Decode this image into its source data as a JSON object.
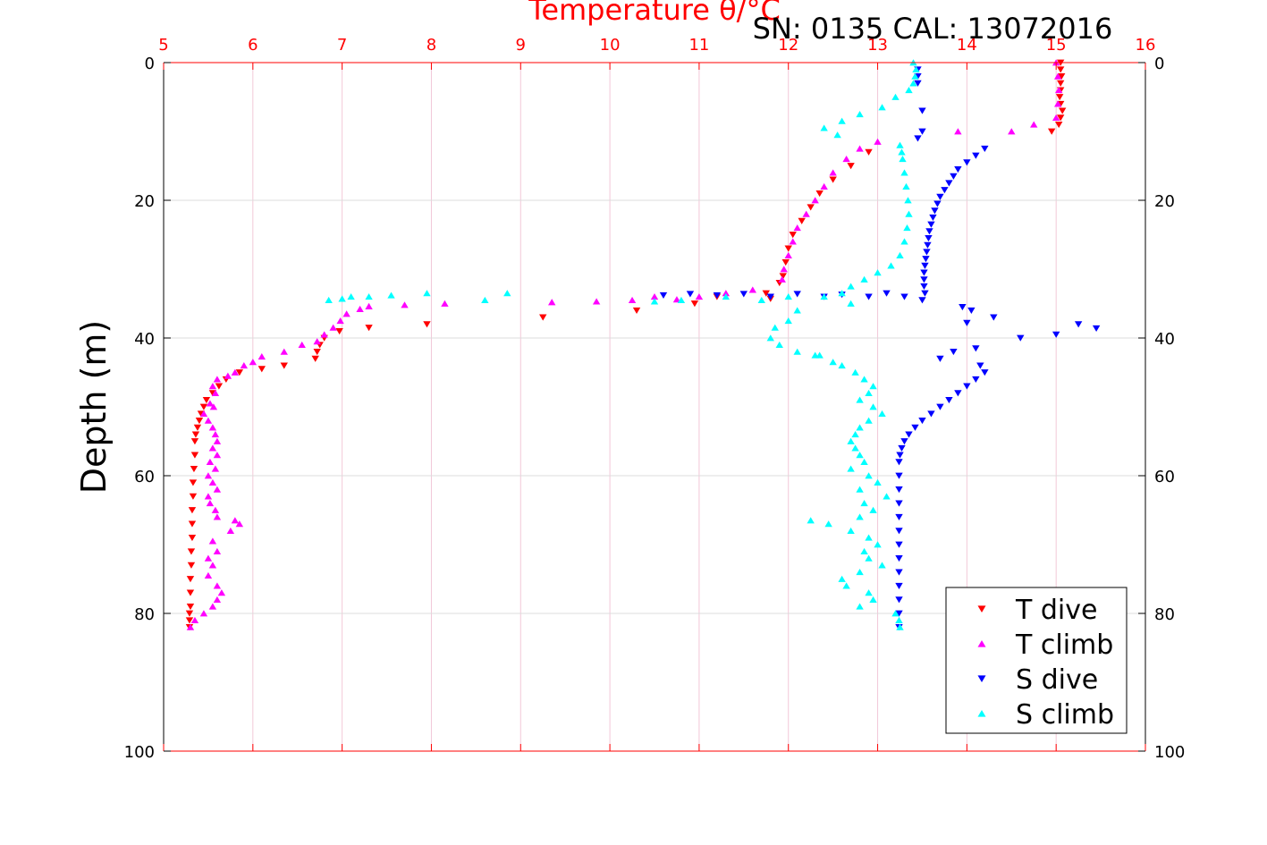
{
  "chart_data": {
    "type": "scatter",
    "title": "Temperature θ/°C",
    "subtitle": "SN: 0135  CAL: 13072016",
    "xlabel": "Temperature θ/°C",
    "ylabel": "Depth (m)",
    "xlim": [
      5,
      16
    ],
    "ylim": [
      0,
      100
    ],
    "y_reversed": true,
    "x_ticks": [
      "5",
      "6",
      "7",
      "8",
      "9",
      "10",
      "11",
      "12",
      "13",
      "14",
      "15",
      "16"
    ],
    "y_ticks": [
      "0",
      "20",
      "40",
      "60",
      "80",
      "100"
    ],
    "grid": true,
    "legend_position": "bottom-right",
    "colors": {
      "t_axis": "#ff0000",
      "t_dive": "#ff0000",
      "t_climb": "#ff00ff",
      "s_dive": "#0000ff",
      "s_climb": "#00ffff"
    },
    "series": [
      {
        "name": "T dive",
        "marker": "triangle-down",
        "color": "#ff0000",
        "points": [
          [
            15.05,
            0
          ],
          [
            15.05,
            1
          ],
          [
            15.06,
            2
          ],
          [
            15.05,
            3
          ],
          [
            15.05,
            4
          ],
          [
            15.04,
            5
          ],
          [
            15.05,
            6
          ],
          [
            15.07,
            7
          ],
          [
            15.05,
            8
          ],
          [
            15.03,
            9
          ],
          [
            14.95,
            10
          ],
          [
            12.9,
            13
          ],
          [
            12.7,
            15
          ],
          [
            12.5,
            17
          ],
          [
            12.35,
            19
          ],
          [
            12.25,
            21
          ],
          [
            12.15,
            23
          ],
          [
            12.05,
            25
          ],
          [
            12.0,
            27
          ],
          [
            11.97,
            29
          ],
          [
            11.94,
            31
          ],
          [
            11.9,
            32
          ],
          [
            11.75,
            33.5
          ],
          [
            11.2,
            34
          ],
          [
            11.8,
            34.3
          ],
          [
            10.95,
            35
          ],
          [
            10.3,
            36
          ],
          [
            9.25,
            37
          ],
          [
            7.95,
            38
          ],
          [
            7.3,
            38.5
          ],
          [
            6.97,
            39
          ],
          [
            6.8,
            40
          ],
          [
            6.75,
            41
          ],
          [
            6.72,
            42
          ],
          [
            6.7,
            43
          ],
          [
            6.35,
            44
          ],
          [
            6.1,
            44.5
          ],
          [
            5.85,
            45
          ],
          [
            5.7,
            46
          ],
          [
            5.62,
            47
          ],
          [
            5.55,
            48
          ],
          [
            5.48,
            49
          ],
          [
            5.45,
            50
          ],
          [
            5.42,
            51
          ],
          [
            5.4,
            52
          ],
          [
            5.38,
            53
          ],
          [
            5.36,
            54
          ],
          [
            5.35,
            55
          ],
          [
            5.35,
            57
          ],
          [
            5.34,
            59
          ],
          [
            5.33,
            61
          ],
          [
            5.33,
            63
          ],
          [
            5.32,
            65
          ],
          [
            5.32,
            67
          ],
          [
            5.32,
            69
          ],
          [
            5.31,
            71
          ],
          [
            5.31,
            73
          ],
          [
            5.3,
            75
          ],
          [
            5.3,
            77
          ],
          [
            5.3,
            79
          ],
          [
            5.29,
            80
          ],
          [
            5.29,
            81
          ],
          [
            5.29,
            82
          ]
        ]
      },
      {
        "name": "T climb",
        "marker": "triangle-up",
        "color": "#ff00ff",
        "points": [
          [
            15.0,
            0
          ],
          [
            15.02,
            2
          ],
          [
            15.03,
            4
          ],
          [
            15.02,
            6
          ],
          [
            15.0,
            8
          ],
          [
            14.75,
            9
          ],
          [
            14.5,
            10
          ],
          [
            13.9,
            10
          ],
          [
            13.0,
            11.5
          ],
          [
            12.8,
            12.5
          ],
          [
            12.65,
            14
          ],
          [
            12.5,
            16
          ],
          [
            12.4,
            18
          ],
          [
            12.3,
            20
          ],
          [
            12.2,
            22
          ],
          [
            12.1,
            24
          ],
          [
            12.05,
            26
          ],
          [
            12.0,
            28
          ],
          [
            11.95,
            30
          ],
          [
            11.93,
            31.5
          ],
          [
            11.6,
            33
          ],
          [
            11.3,
            33.5
          ],
          [
            11.0,
            34
          ],
          [
            10.5,
            34
          ],
          [
            10.75,
            34.4
          ],
          [
            10.25,
            34.5
          ],
          [
            9.85,
            34.7
          ],
          [
            9.35,
            34.8
          ],
          [
            8.15,
            35
          ],
          [
            7.7,
            35.2
          ],
          [
            7.3,
            35.4
          ],
          [
            7.2,
            35.8
          ],
          [
            7.05,
            36.5
          ],
          [
            6.98,
            37.5
          ],
          [
            6.9,
            38.5
          ],
          [
            6.8,
            39.5
          ],
          [
            6.72,
            40.5
          ],
          [
            6.55,
            41
          ],
          [
            6.35,
            42
          ],
          [
            6.1,
            42.7
          ],
          [
            6.0,
            43.5
          ],
          [
            5.9,
            44
          ],
          [
            5.8,
            45
          ],
          [
            5.72,
            45.5
          ],
          [
            5.6,
            46
          ],
          [
            5.55,
            47
          ],
          [
            5.58,
            48
          ],
          [
            5.52,
            49.5
          ],
          [
            5.56,
            50
          ],
          [
            5.45,
            51
          ],
          [
            5.5,
            52
          ],
          [
            5.55,
            53
          ],
          [
            5.58,
            54
          ],
          [
            5.6,
            55
          ],
          [
            5.55,
            56
          ],
          [
            5.6,
            57
          ],
          [
            5.52,
            58
          ],
          [
            5.58,
            59
          ],
          [
            5.5,
            60
          ],
          [
            5.55,
            61
          ],
          [
            5.6,
            62
          ],
          [
            5.5,
            63
          ],
          [
            5.52,
            64
          ],
          [
            5.58,
            65
          ],
          [
            5.6,
            66
          ],
          [
            5.8,
            66.5
          ],
          [
            5.85,
            67
          ],
          [
            5.75,
            68
          ],
          [
            5.55,
            69.5
          ],
          [
            5.6,
            71
          ],
          [
            5.5,
            72
          ],
          [
            5.55,
            73
          ],
          [
            5.5,
            74.5
          ],
          [
            5.6,
            76
          ],
          [
            5.65,
            77
          ],
          [
            5.6,
            78
          ],
          [
            5.55,
            79
          ],
          [
            5.45,
            80
          ],
          [
            5.35,
            81
          ],
          [
            5.3,
            82
          ]
        ]
      },
      {
        "name": "S dive",
        "marker": "triangle-down",
        "color": "#0000ff",
        "points": [
          [
            13.45,
            1
          ],
          [
            13.45,
            2
          ],
          [
            13.45,
            3
          ],
          [
            13.5,
            7
          ],
          [
            13.5,
            10
          ],
          [
            13.45,
            11
          ],
          [
            14.2,
            12.5
          ],
          [
            14.1,
            13.5
          ],
          [
            14.0,
            14.5
          ],
          [
            13.9,
            15.5
          ],
          [
            13.85,
            16.5
          ],
          [
            13.8,
            17.5
          ],
          [
            13.75,
            18.5
          ],
          [
            13.7,
            19.5
          ],
          [
            13.67,
            20.5
          ],
          [
            13.64,
            21.5
          ],
          [
            13.62,
            22.5
          ],
          [
            13.6,
            23.5
          ],
          [
            13.58,
            24.5
          ],
          [
            13.57,
            25.5
          ],
          [
            13.56,
            26.5
          ],
          [
            13.55,
            27.5
          ],
          [
            13.54,
            28.5
          ],
          [
            13.53,
            29.5
          ],
          [
            13.52,
            30.5
          ],
          [
            13.52,
            31.5
          ],
          [
            13.52,
            32.5
          ],
          [
            13.53,
            33.5
          ],
          [
            13.5,
            34.5
          ],
          [
            13.3,
            34
          ],
          [
            13.1,
            33.5
          ],
          [
            12.9,
            34
          ],
          [
            12.6,
            33.7
          ],
          [
            12.4,
            34
          ],
          [
            12.1,
            33.6
          ],
          [
            11.8,
            34
          ],
          [
            11.5,
            33.6
          ],
          [
            11.2,
            33.8
          ],
          [
            10.9,
            33.6
          ],
          [
            10.6,
            33.8
          ],
          [
            14.3,
            37
          ],
          [
            14.0,
            37.8
          ],
          [
            15.25,
            38
          ],
          [
            15.45,
            38.6
          ],
          [
            15.0,
            39.5
          ],
          [
            14.6,
            40
          ],
          [
            14.1,
            41.5
          ],
          [
            13.85,
            42
          ],
          [
            13.7,
            43
          ],
          [
            14.15,
            44
          ],
          [
            14.2,
            45
          ],
          [
            14.1,
            46
          ],
          [
            14.0,
            47
          ],
          [
            13.9,
            48
          ],
          [
            13.8,
            49
          ],
          [
            13.7,
            50
          ],
          [
            13.6,
            51
          ],
          [
            13.5,
            52
          ],
          [
            13.42,
            53
          ],
          [
            13.35,
            54
          ],
          [
            13.3,
            55
          ],
          [
            13.27,
            56
          ],
          [
            13.25,
            57
          ],
          [
            13.24,
            58
          ],
          [
            13.24,
            60
          ],
          [
            13.24,
            62
          ],
          [
            13.24,
            64
          ],
          [
            13.24,
            66
          ],
          [
            13.24,
            68
          ],
          [
            13.24,
            70
          ],
          [
            13.24,
            72
          ],
          [
            13.24,
            74
          ],
          [
            13.24,
            76
          ],
          [
            13.24,
            78
          ],
          [
            13.24,
            80
          ],
          [
            13.24,
            82
          ],
          [
            13.95,
            35.5
          ],
          [
            14.05,
            36
          ]
        ]
      },
      {
        "name": "S climb",
        "marker": "triangle-up",
        "color": "#00ffff",
        "points": [
          [
            13.4,
            0
          ],
          [
            13.43,
            1
          ],
          [
            13.42,
            2
          ],
          [
            13.4,
            3
          ],
          [
            13.35,
            4
          ],
          [
            13.2,
            5
          ],
          [
            13.05,
            6.5
          ],
          [
            12.8,
            7.5
          ],
          [
            12.6,
            8.5
          ],
          [
            12.4,
            9.5
          ],
          [
            12.55,
            10.5
          ],
          [
            13.25,
            12
          ],
          [
            13.27,
            13
          ],
          [
            13.28,
            14
          ],
          [
            13.3,
            16
          ],
          [
            13.32,
            18
          ],
          [
            13.34,
            20
          ],
          [
            13.35,
            22
          ],
          [
            13.33,
            24
          ],
          [
            13.3,
            26
          ],
          [
            13.25,
            28
          ],
          [
            13.15,
            29.5
          ],
          [
            13.0,
            30.5
          ],
          [
            12.85,
            31.5
          ],
          [
            12.7,
            32.5
          ],
          [
            12.6,
            33.5
          ],
          [
            12.4,
            34
          ],
          [
            12.0,
            34
          ],
          [
            11.7,
            34.5
          ],
          [
            11.3,
            34
          ],
          [
            10.8,
            34.5
          ],
          [
            10.5,
            34.7
          ],
          [
            8.85,
            33.5
          ],
          [
            8.6,
            34.5
          ],
          [
            7.95,
            33.5
          ],
          [
            7.55,
            33.8
          ],
          [
            7.3,
            34
          ],
          [
            7.1,
            34
          ],
          [
            7.0,
            34.3
          ],
          [
            6.85,
            34.5
          ],
          [
            12.1,
            36
          ],
          [
            12.0,
            37.5
          ],
          [
            11.85,
            38.5
          ],
          [
            11.8,
            40
          ],
          [
            11.9,
            41
          ],
          [
            12.1,
            42
          ],
          [
            12.3,
            42.5
          ],
          [
            12.5,
            43.5
          ],
          [
            12.6,
            44
          ],
          [
            12.75,
            45
          ],
          [
            12.85,
            46
          ],
          [
            12.95,
            47
          ],
          [
            12.9,
            48
          ],
          [
            12.8,
            49
          ],
          [
            12.95,
            50
          ],
          [
            13.05,
            51
          ],
          [
            12.9,
            52
          ],
          [
            12.8,
            53
          ],
          [
            12.75,
            54
          ],
          [
            12.7,
            55
          ],
          [
            12.75,
            56
          ],
          [
            12.8,
            57
          ],
          [
            12.85,
            58
          ],
          [
            12.7,
            59
          ],
          [
            12.9,
            60
          ],
          [
            13.0,
            61
          ],
          [
            12.8,
            62
          ],
          [
            13.1,
            63
          ],
          [
            12.85,
            64
          ],
          [
            12.95,
            65
          ],
          [
            12.8,
            66
          ],
          [
            12.25,
            66.5
          ],
          [
            12.45,
            67
          ],
          [
            12.7,
            68
          ],
          [
            12.9,
            69
          ],
          [
            13.0,
            70
          ],
          [
            12.85,
            71
          ],
          [
            12.9,
            72
          ],
          [
            13.05,
            73
          ],
          [
            12.8,
            74
          ],
          [
            12.6,
            75
          ],
          [
            12.65,
            76
          ],
          [
            12.9,
            77
          ],
          [
            12.95,
            78
          ],
          [
            12.8,
            79
          ],
          [
            13.2,
            80
          ],
          [
            13.24,
            81
          ],
          [
            13.25,
            82
          ],
          [
            12.35,
            42.5
          ],
          [
            12.7,
            35
          ]
        ]
      }
    ]
  }
}
